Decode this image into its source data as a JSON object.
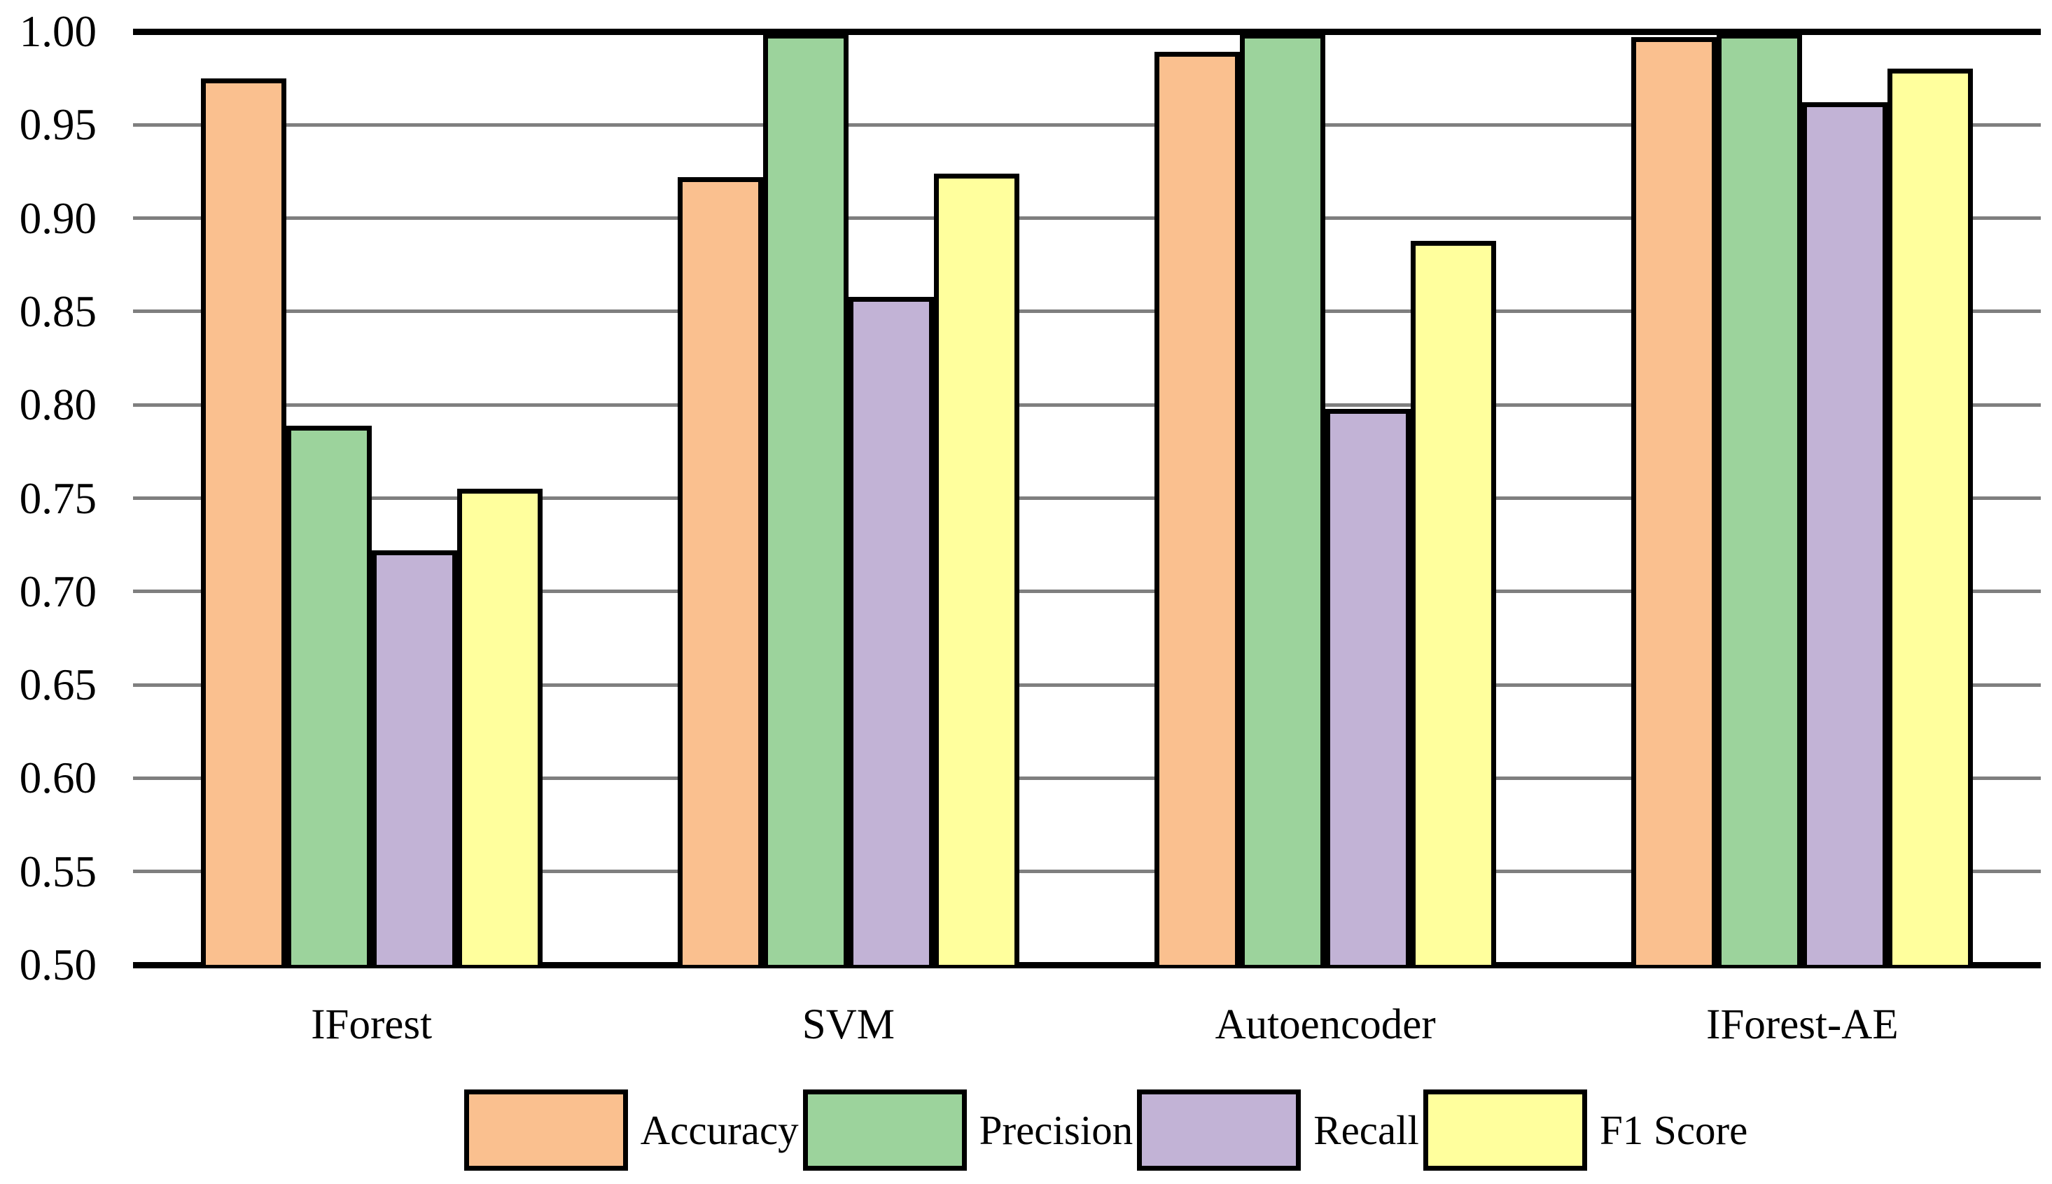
{
  "chart_data": {
    "type": "bar",
    "title": "",
    "xlabel": "",
    "ylabel": "",
    "categories": [
      "IForest",
      "SVM",
      "Autoencoder",
      "IForest-AE"
    ],
    "series": [
      {
        "name": "Accuracy",
        "color": "#FAC08F",
        "values": [
          0.975,
          0.922,
          0.989,
          0.997
        ]
      },
      {
        "name": "Precision",
        "color": "#9CD39C",
        "values": [
          0.789,
          0.999,
          0.999,
          0.999
        ]
      },
      {
        "name": "Recall",
        "color": "#C2B3D6",
        "values": [
          0.722,
          0.858,
          0.798,
          0.962
        ]
      },
      {
        "name": "F1 Score",
        "color": "#FFFF9D",
        "values": [
          0.755,
          0.924,
          0.888,
          0.98
        ]
      }
    ],
    "ylim": [
      0.5,
      1.0
    ],
    "ytick_step": 0.05,
    "ytick_labels": [
      "1.00",
      "0.95",
      "0.90",
      "0.85",
      "0.80",
      "0.75",
      "0.70",
      "0.65",
      "0.60",
      "0.55",
      "0.50"
    ],
    "grid": "horizontal",
    "legend_position": "bottom"
  },
  "style": {
    "gridline_color": "#7f7f7f",
    "axis_color": "#000000",
    "background": "#FFFFFF",
    "bar_border_color": "#000000"
  }
}
